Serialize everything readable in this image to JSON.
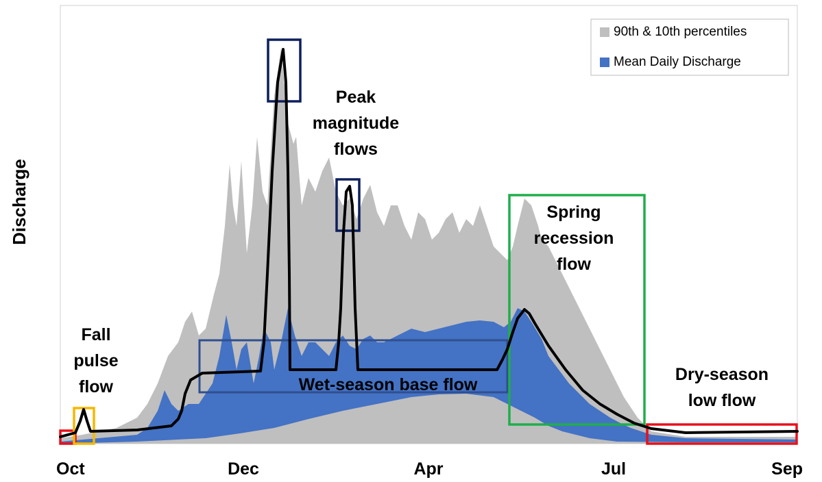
{
  "chart_data": {
    "type": "area",
    "ylabel": "Discharge",
    "categories": [
      "Oct",
      "Dec",
      "Apr",
      "Jul",
      "Sep"
    ],
    "series": [
      {
        "name": "90th & 10th percentiles",
        "color": "#bfbfbf"
      },
      {
        "name": "Mean Daily Discharge",
        "color": "#4472c4"
      }
    ],
    "annotations": [
      {
        "lines": [
          "Fall",
          "pulse",
          "flow"
        ]
      },
      {
        "lines": [
          "Peak",
          "magnitude",
          "flows"
        ]
      },
      {
        "lines": [
          "Wet-season base flow"
        ]
      },
      {
        "lines": [
          "Spring",
          "recession",
          "flow"
        ]
      },
      {
        "lines": [
          "Dry-season",
          "low flow"
        ]
      }
    ]
  }
}
